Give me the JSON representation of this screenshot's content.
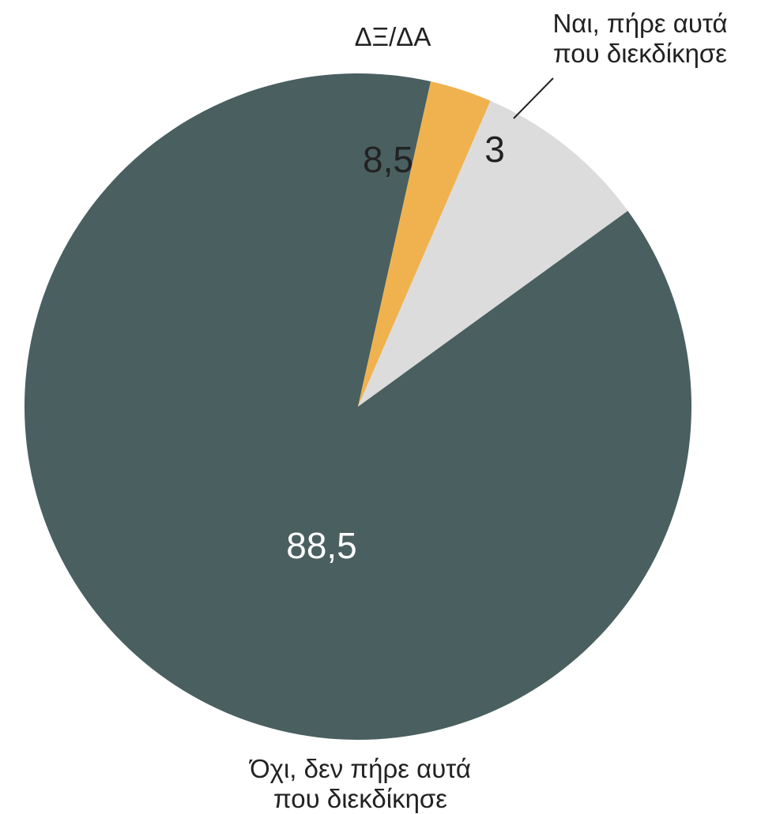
{
  "chart_data": {
    "type": "pie",
    "title": "",
    "start_angle_deg": 12.6,
    "direction": "counterclockwise",
    "slices": [
      {
        "name": "Όχι, δεν πήρε αυτά που διεκδίκησε",
        "label_lines": [
          "Όχι, δεν πήρε αυτά",
          "που διεκδίκησε"
        ],
        "value": 88.5,
        "value_label": "88,5",
        "color": "#4a5f60",
        "value_label_color": "#ffffff"
      },
      {
        "name": "ΔΞ/ΔΑ",
        "label_lines": [
          "ΔΞ/ΔΑ"
        ],
        "value": 8.5,
        "value_label": "8,5",
        "color": "#dcdcdc",
        "value_label_color": "#222222"
      },
      {
        "name": "Ναι, πήρε αυτά που διεκδίκησε",
        "label_lines": [
          "Ναι, πήρε αυτά",
          "που διεκδίκησε"
        ],
        "value": 3,
        "value_label": "3",
        "color": "#f0b24f",
        "value_label_color": "#222222"
      }
    ]
  }
}
